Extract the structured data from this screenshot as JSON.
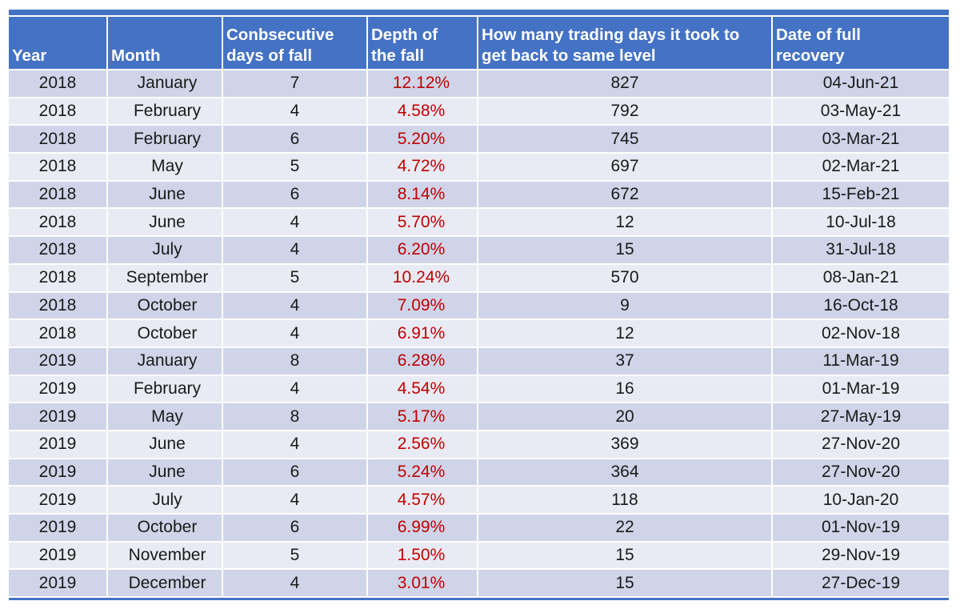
{
  "colors": {
    "header_bg": "#4472C4",
    "band_dark": "#CFD4E8",
    "band_light": "#E9EBF4",
    "depth_text": "#C00000",
    "header_text": "#FFFFFF",
    "body_text": "#1A1A1A"
  },
  "chart_data": {
    "type": "table",
    "title": "",
    "columns": [
      "Year",
      "Month",
      "Conbsecutive days of fall",
      "Depth of the fall",
      "How many trading days it took to get back to same level",
      "Date of full recovery"
    ],
    "rows": [
      [
        "2018",
        "January",
        "7",
        "12.12%",
        "827",
        "04-Jun-21"
      ],
      [
        "2018",
        "February",
        "4",
        "4.58%",
        "792",
        "03-May-21"
      ],
      [
        "2018",
        "February",
        "6",
        "5.20%",
        "745",
        "03-Mar-21"
      ],
      [
        "2018",
        "May",
        "5",
        "4.72%",
        "697",
        "02-Mar-21"
      ],
      [
        "2018",
        "June",
        "6",
        "8.14%",
        "672",
        "15-Feb-21"
      ],
      [
        "2018",
        "June",
        "4",
        "5.70%",
        "12",
        "10-Jul-18"
      ],
      [
        "2018",
        "July",
        "4",
        "6.20%",
        "15",
        "31-Jul-18"
      ],
      [
        "2018",
        "September",
        "5",
        "10.24%",
        "570",
        "08-Jan-21"
      ],
      [
        "2018",
        "October",
        "4",
        "7.09%",
        "9",
        "16-Oct-18"
      ],
      [
        "2018",
        "October",
        "4",
        "6.91%",
        "12",
        "02-Nov-18"
      ],
      [
        "2019",
        "January",
        "8",
        "6.28%",
        "37",
        "11-Mar-19"
      ],
      [
        "2019",
        "February",
        "4",
        "4.54%",
        "16",
        "01-Mar-19"
      ],
      [
        "2019",
        "May",
        "8",
        "5.17%",
        "20",
        "27-May-19"
      ],
      [
        "2019",
        "June",
        "4",
        "2.56%",
        "369",
        "27-Nov-20"
      ],
      [
        "2019",
        "June",
        "6",
        "5.24%",
        "364",
        "27-Nov-20"
      ],
      [
        "2019",
        "July",
        "4",
        "4.57%",
        "118",
        "10-Jan-20"
      ],
      [
        "2019",
        "October",
        "6",
        "6.99%",
        "22",
        "01-Nov-19"
      ],
      [
        "2019",
        "November",
        "5",
        "1.50%",
        "15",
        "29-Nov-19"
      ],
      [
        "2019",
        "December",
        "4",
        "3.01%",
        "15",
        "27-Dec-19"
      ]
    ],
    "layout": {
      "banded_rows": true,
      "first_data_row_band": "dark",
      "depth_column_color": "red",
      "header_alignment": "bottom-left"
    }
  }
}
